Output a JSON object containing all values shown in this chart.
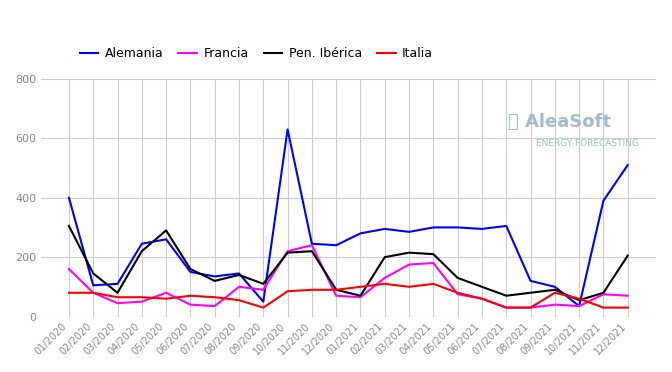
{
  "title": "",
  "series": {
    "Alemania": [
      400,
      105,
      110,
      245,
      260,
      150,
      135,
      145,
      50,
      630,
      245,
      240,
      280,
      295,
      285,
      300,
      300,
      295,
      305,
      120,
      100,
      35,
      390,
      510
    ],
    "Francia": [
      160,
      80,
      45,
      50,
      80,
      40,
      35,
      100,
      90,
      220,
      240,
      70,
      65,
      130,
      175,
      180,
      75,
      60,
      30,
      30,
      40,
      35,
      75,
      70
    ],
    "Pen. Ibérica": [
      305,
      145,
      80,
      220,
      290,
      160,
      120,
      140,
      110,
      215,
      220,
      90,
      70,
      200,
      215,
      210,
      130,
      100,
      70,
      80,
      90,
      55,
      80,
      205
    ],
    "Italia": [
      80,
      80,
      65,
      65,
      60,
      70,
      65,
      55,
      30,
      85,
      90,
      90,
      100,
      110,
      100,
      110,
      80,
      60,
      30,
      30,
      80,
      60,
      30,
      30
    ]
  },
  "colors": {
    "Alemania": "#0000FF",
    "Francia": "#FF00FF",
    "Pen. Ibérica": "#000000",
    "Italia": "#FF0000"
  },
  "x_labels": [
    "01/2020",
    "02/2020",
    "03/2020",
    "04/2020",
    "05/2020",
    "06/2020",
    "07/2020",
    "08/2020",
    "09/2020",
    "10/2020",
    "11/2020",
    "12/2020",
    "01/2021",
    "02/2021",
    "03/2021",
    "04/2021",
    "05/2021",
    "06/2021",
    "07/2021",
    "08/2021",
    "09/2021",
    "10/2021",
    "11/2021",
    "12/2021"
  ],
  "ylim": [
    0,
    800
  ],
  "yticks": [
    0,
    200,
    400,
    600,
    800
  ],
  "grid_color": "#cccccc",
  "background_color": "#ffffff",
  "legend_order": [
    "Alemania",
    "Francia",
    "Pen. Ibérica",
    "Italia"
  ],
  "watermark_text": "⸻ AleaSoft",
  "watermark_subtext": "ENERGY FORECASTING",
  "line_width": 1.5
}
